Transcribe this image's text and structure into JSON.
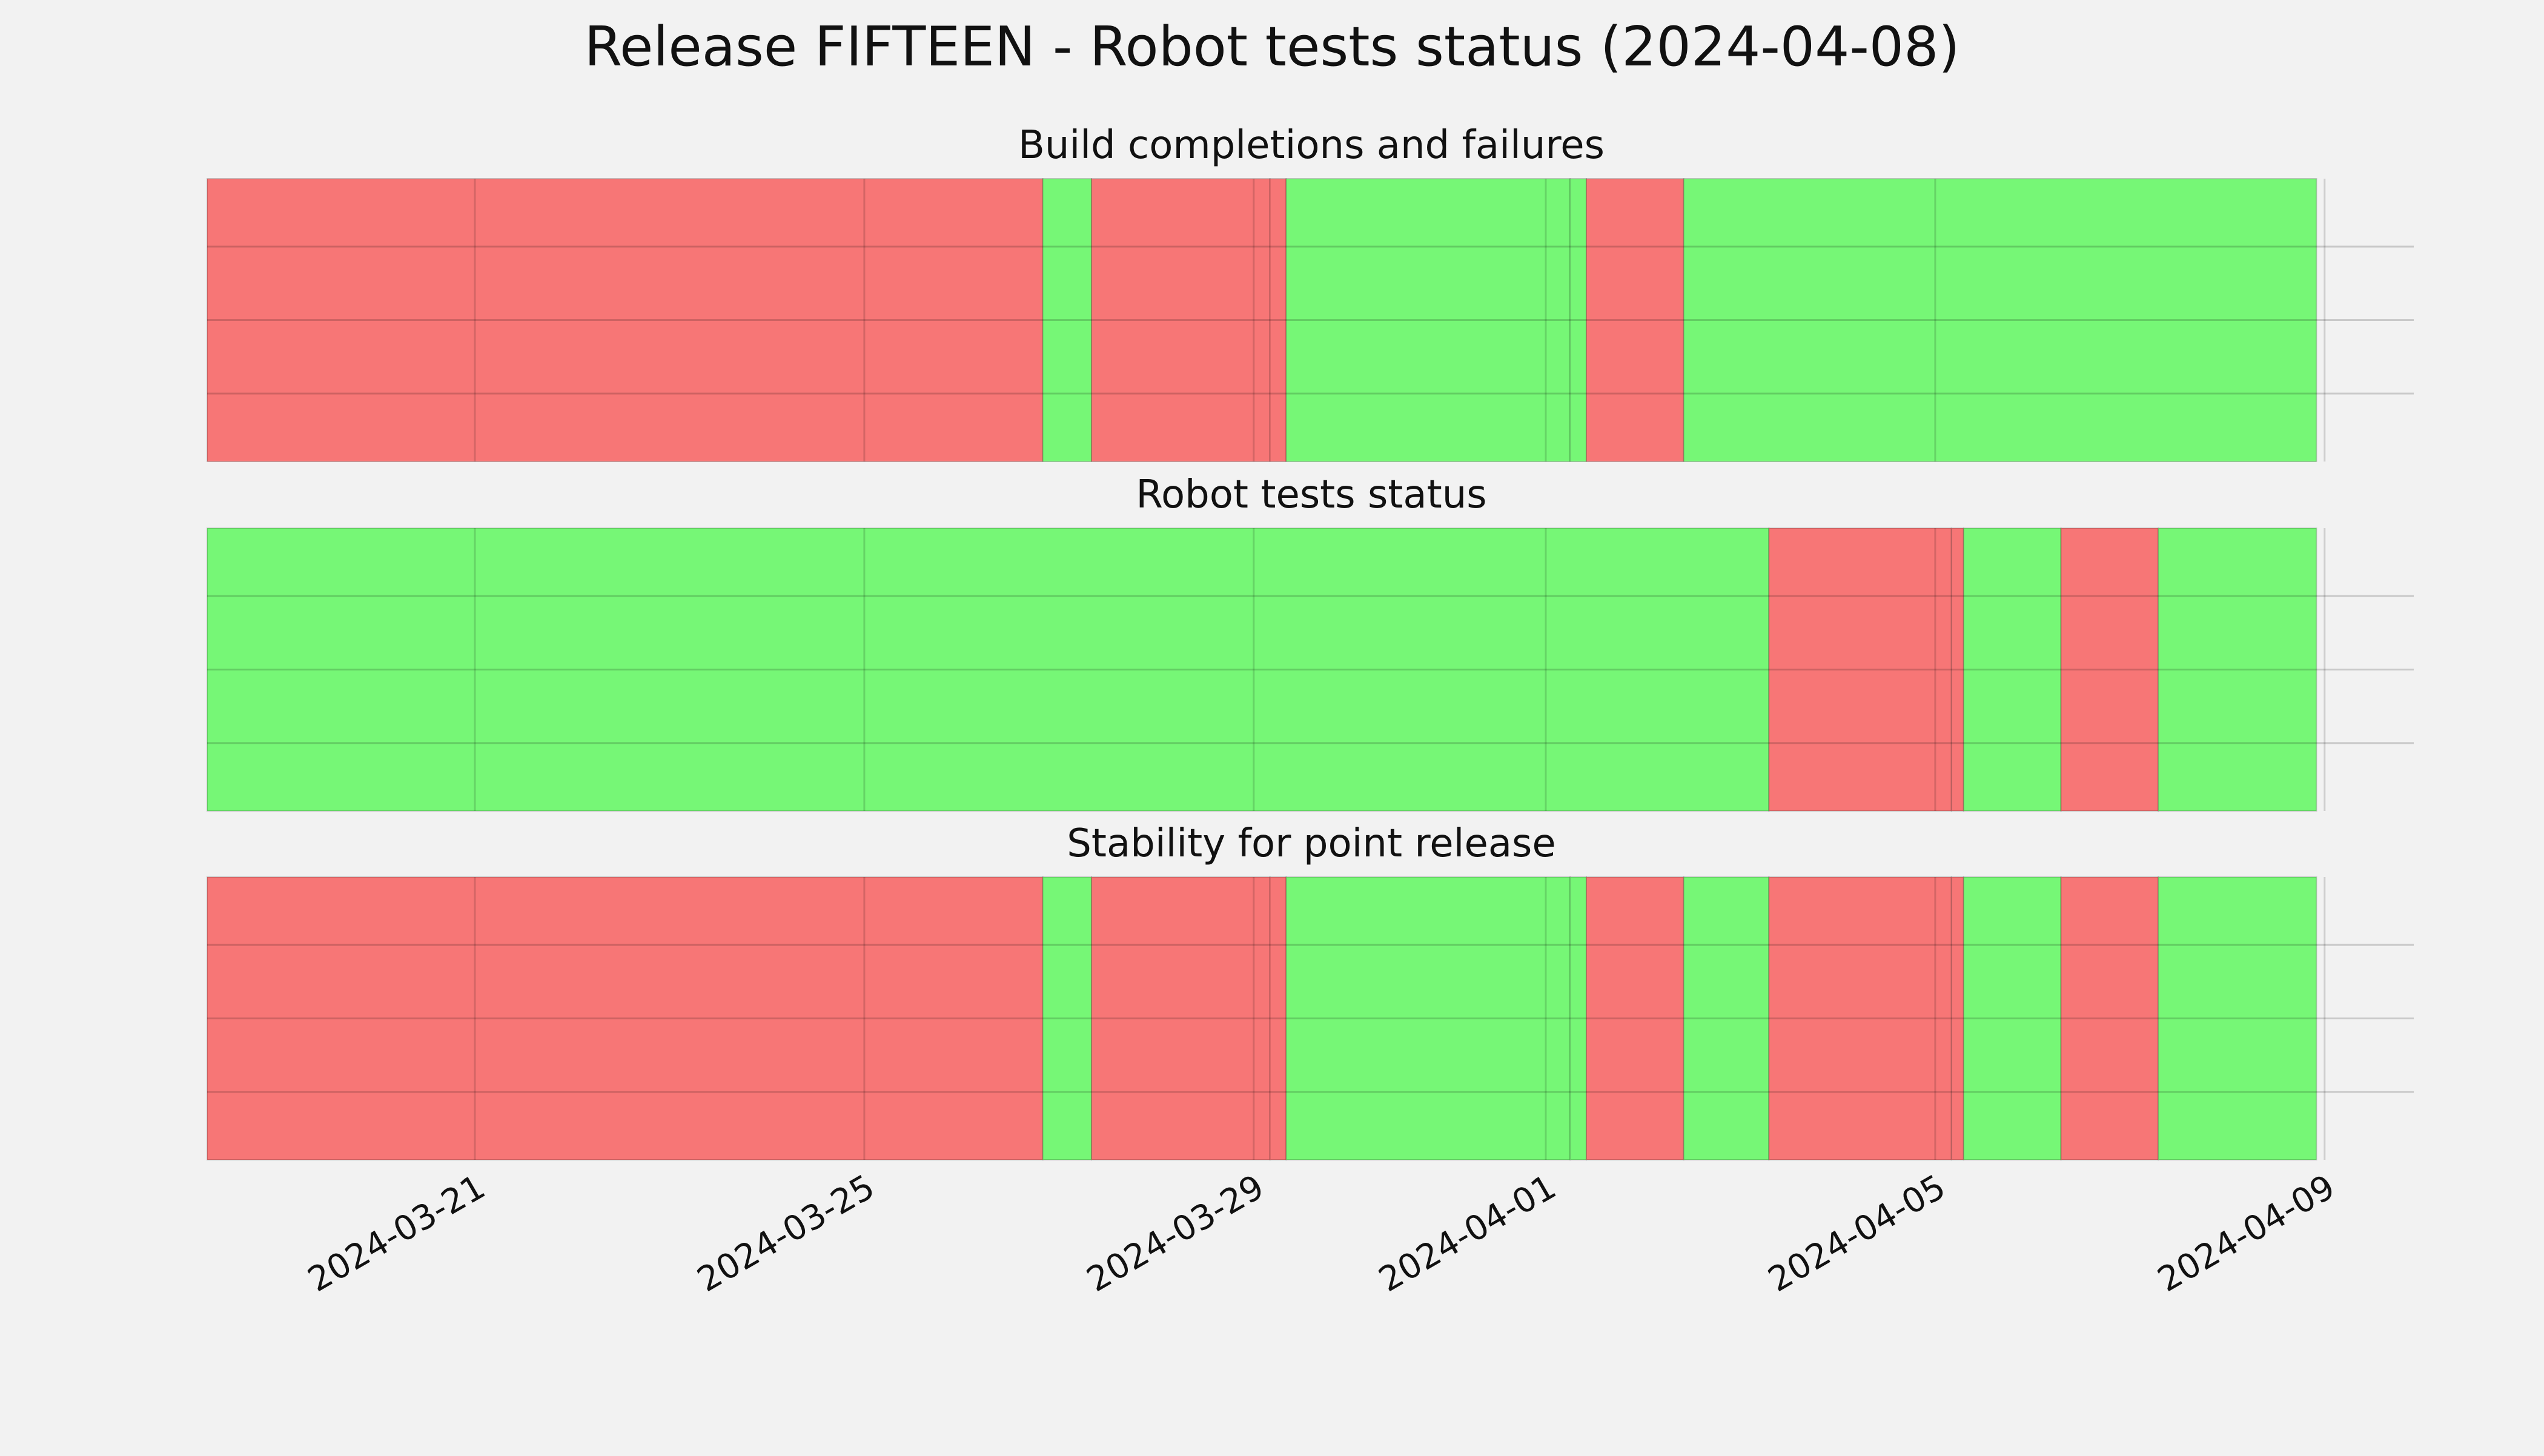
{
  "title": "Release FIFTEEN - Robot tests status (2024-04-08)",
  "colors": {
    "pass": "#76f776",
    "fail": "#f77676",
    "background": "#f2f2f2",
    "grid": "#cbcbcb"
  },
  "x_ticks": [
    {
      "date": "2024-03-21",
      "label": "2024-03-21"
    },
    {
      "date": "2024-03-25",
      "label": "2024-03-25"
    },
    {
      "date": "2024-03-29",
      "label": "2024-03-29"
    },
    {
      "date": "2024-04-01",
      "label": "2024-04-01"
    },
    {
      "date": "2024-04-05",
      "label": "2024-04-05"
    },
    {
      "date": "2024-04-09",
      "label": "2024-04-09"
    }
  ],
  "chart_data": [
    {
      "type": "timeline",
      "title": "Build completions and failures",
      "xlim": [
        "2024-03-18T06:00",
        "2024-04-09T06:00"
      ],
      "grid": true,
      "segments": [
        {
          "start": "2024-03-18T06:00",
          "end": "2024-03-26T20:00",
          "status": "fail"
        },
        {
          "start": "2024-03-26T20:00",
          "end": "2024-03-27T08:00",
          "status": "pass"
        },
        {
          "start": "2024-03-27T08:00",
          "end": "2024-03-29T04:00",
          "status": "fail"
        },
        {
          "start": "2024-03-29T04:00",
          "end": "2024-03-29T08:00",
          "status": "fail"
        },
        {
          "start": "2024-03-29T08:00",
          "end": "2024-04-01T06:00",
          "status": "pass"
        },
        {
          "start": "2024-04-01T06:00",
          "end": "2024-04-01T10:00",
          "status": "pass"
        },
        {
          "start": "2024-04-01T10:00",
          "end": "2024-04-02T10:00",
          "status": "fail"
        },
        {
          "start": "2024-04-02T10:00",
          "end": "2024-04-08T22:00",
          "status": "pass"
        }
      ]
    },
    {
      "type": "timeline",
      "title": "Robot tests status",
      "xlim": [
        "2024-03-18T06:00",
        "2024-04-09T06:00"
      ],
      "grid": true,
      "segments": [
        {
          "start": "2024-03-18T06:00",
          "end": "2024-04-03T07:00",
          "status": "pass"
        },
        {
          "start": "2024-04-03T07:00",
          "end": "2024-04-05T04:00",
          "status": "fail"
        },
        {
          "start": "2024-04-05T04:00",
          "end": "2024-04-05T07:00",
          "status": "fail"
        },
        {
          "start": "2024-04-05T07:00",
          "end": "2024-04-06T07:00",
          "status": "pass"
        },
        {
          "start": "2024-04-06T07:00",
          "end": "2024-04-07T07:00",
          "status": "fail"
        },
        {
          "start": "2024-04-07T07:00",
          "end": "2024-04-08T22:00",
          "status": "pass"
        }
      ]
    },
    {
      "type": "timeline",
      "title": "Stability for point release",
      "xlim": [
        "2024-03-18T06:00",
        "2024-04-09T06:00"
      ],
      "grid": true,
      "segments": [
        {
          "start": "2024-03-18T06:00",
          "end": "2024-03-26T20:00",
          "status": "fail"
        },
        {
          "start": "2024-03-26T20:00",
          "end": "2024-03-27T08:00",
          "status": "pass"
        },
        {
          "start": "2024-03-27T08:00",
          "end": "2024-03-29T04:00",
          "status": "fail"
        },
        {
          "start": "2024-03-29T04:00",
          "end": "2024-03-29T08:00",
          "status": "fail"
        },
        {
          "start": "2024-03-29T08:00",
          "end": "2024-04-01T06:00",
          "status": "pass"
        },
        {
          "start": "2024-04-01T06:00",
          "end": "2024-04-01T10:00",
          "status": "pass"
        },
        {
          "start": "2024-04-01T10:00",
          "end": "2024-04-02T10:00",
          "status": "fail"
        },
        {
          "start": "2024-04-02T10:00",
          "end": "2024-04-03T07:00",
          "status": "pass"
        },
        {
          "start": "2024-04-03T07:00",
          "end": "2024-04-05T04:00",
          "status": "fail"
        },
        {
          "start": "2024-04-05T04:00",
          "end": "2024-04-05T07:00",
          "status": "fail"
        },
        {
          "start": "2024-04-05T07:00",
          "end": "2024-04-06T07:00",
          "status": "pass"
        },
        {
          "start": "2024-04-06T07:00",
          "end": "2024-04-07T07:00",
          "status": "fail"
        },
        {
          "start": "2024-04-07T07:00",
          "end": "2024-04-08T22:00",
          "status": "pass"
        }
      ]
    }
  ]
}
